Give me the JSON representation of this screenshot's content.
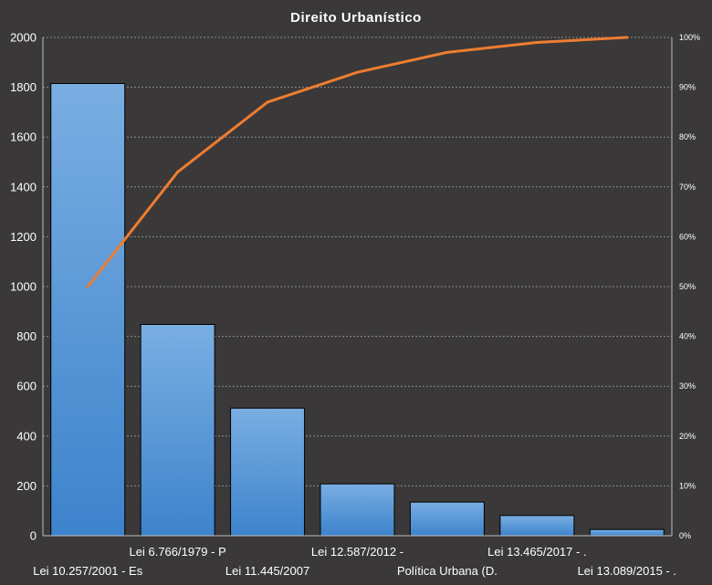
{
  "chart_data": {
    "type": "bar",
    "title": "Direito  Urbanístico",
    "categories": [
      "Lei 10.257/2001 - Es",
      "Lei 6.766/1979 - P",
      "Lei 11.445/2007",
      "Lei 12.587/2012 -",
      "Política Urbana (D.",
      "Lei 13.465/2017 -  .",
      "Lei 13.089/2015 - ."
    ],
    "series": [
      {
        "type": "bar",
        "axis": "left",
        "values": [
          1815,
          848,
          512,
          208,
          135,
          81,
          25
        ]
      },
      {
        "type": "line",
        "axis": "right",
        "values": [
          50,
          73,
          87,
          93,
          97,
          99,
          100
        ]
      }
    ],
    "ylim_left": [
      0,
      2000
    ],
    "yticks_left": [
      "0",
      "200",
      "400",
      "600",
      "800",
      "1000",
      "1200",
      "1400",
      "1600",
      "1800",
      "2000"
    ],
    "ylim_right": [
      0,
      100
    ],
    "yticks_right": [
      "0%",
      "10%",
      "20%",
      "30%",
      "40%",
      "50%",
      "60%",
      "70%",
      "80%",
      "90%",
      "100%"
    ],
    "grid": true,
    "colors": {
      "background": "#3a3838",
      "bar_top": "#7aaee2",
      "bar_bottom": "#3d83cc",
      "bar_stroke": "#000000",
      "line": "#ed7d31",
      "text": "#ffffff"
    }
  }
}
